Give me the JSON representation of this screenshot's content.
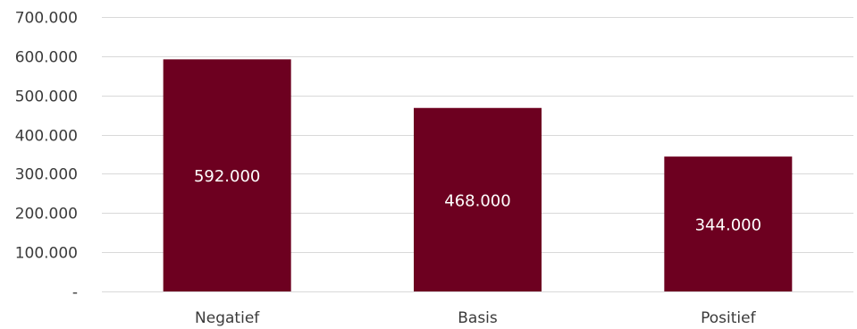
{
  "chart_data": {
    "type": "bar",
    "categories": [
      "Negatief",
      "Basis",
      "Positief"
    ],
    "values": [
      592000,
      468000,
      344000
    ],
    "data_labels": [
      "592.000",
      "468.000",
      "344.000"
    ],
    "title": "",
    "xlabel": "",
    "ylabel": "",
    "ylim": [
      0,
      700000
    ],
    "y_ticks": [
      0,
      100000,
      200000,
      300000,
      400000,
      500000,
      600000,
      700000
    ],
    "y_tick_labels": [
      "-",
      "100.000",
      "200.000",
      "300.000",
      "400.000",
      "500.000",
      "600.000",
      "700.000"
    ],
    "grid": true,
    "legend": "none",
    "bar_color": "#6d0020"
  }
}
